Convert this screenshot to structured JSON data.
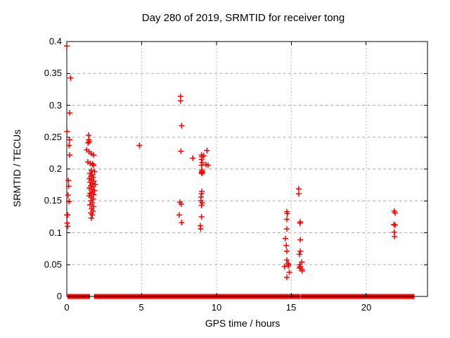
{
  "chart_data": {
    "type": "scatter",
    "title": "Day 280 of 2019, SRMTID for receiver tong",
    "xlabel": "GPS time / hours",
    "ylabel": "SRMTID / TECUs",
    "xlim": [
      0,
      24.1
    ],
    "ylim": [
      0,
      0.4
    ],
    "xticks": [
      [
        0,
        "0"
      ],
      [
        5,
        "5"
      ],
      [
        10,
        "10"
      ],
      [
        15,
        "15"
      ],
      [
        20,
        "20"
      ]
    ],
    "yticks": [
      [
        0,
        "0"
      ],
      [
        0.05,
        "0.05"
      ],
      [
        0.1,
        "0.1"
      ],
      [
        0.15,
        "0.15"
      ],
      [
        0.2,
        "0.2"
      ],
      [
        0.25,
        "0.25"
      ],
      [
        0.3,
        "0.3"
      ],
      [
        0.35,
        "0.35"
      ],
      [
        0.4,
        "0.4"
      ]
    ],
    "grid": true,
    "legend_position": "none",
    "marker": "plus",
    "marker_color": "#ff0000",
    "grid_color": "#b5b5b5",
    "series_name": "SRMTID",
    "points": [
      [
        0.0,
        0.393
      ],
      [
        0.25,
        0.343
      ],
      [
        0.19,
        0.288
      ],
      [
        0.02,
        0.259
      ],
      [
        0.19,
        0.246
      ],
      [
        0.15,
        0.237
      ],
      [
        0.19,
        0.222
      ],
      [
        0.1,
        0.182
      ],
      [
        0.12,
        0.173
      ],
      [
        0.08,
        0.159
      ],
      [
        0.15,
        0.149
      ],
      [
        0.0,
        0.128
      ],
      [
        0.06,
        0.128
      ],
      [
        0.03,
        0.115
      ],
      [
        0.05,
        0.11
      ],
      [
        1.45,
        0.253
      ],
      [
        1.47,
        0.246
      ],
      [
        1.5,
        0.243
      ],
      [
        1.42,
        0.241
      ],
      [
        1.33,
        0.23
      ],
      [
        1.49,
        0.227
      ],
      [
        1.64,
        0.224
      ],
      [
        1.8,
        0.222
      ],
      [
        1.41,
        0.211
      ],
      [
        1.56,
        0.209
      ],
      [
        1.73,
        0.208
      ],
      [
        1.78,
        0.206
      ],
      [
        1.64,
        0.198
      ],
      [
        1.85,
        0.196
      ],
      [
        1.55,
        0.193
      ],
      [
        1.7,
        0.191
      ],
      [
        1.6,
        0.189
      ],
      [
        1.76,
        0.187
      ],
      [
        1.5,
        0.185
      ],
      [
        1.65,
        0.183
      ],
      [
        1.81,
        0.181
      ],
      [
        1.55,
        0.179
      ],
      [
        1.7,
        0.177
      ],
      [
        1.9,
        0.176
      ],
      [
        1.6,
        0.174
      ],
      [
        1.76,
        0.172
      ],
      [
        1.5,
        0.17
      ],
      [
        1.66,
        0.168
      ],
      [
        1.85,
        0.166
      ],
      [
        1.7,
        0.164
      ],
      [
        1.56,
        0.162
      ],
      [
        1.8,
        0.16
      ],
      [
        1.5,
        0.158
      ],
      [
        1.65,
        0.156
      ],
      [
        1.76,
        0.153
      ],
      [
        1.6,
        0.15
      ],
      [
        1.7,
        0.147
      ],
      [
        1.55,
        0.144
      ],
      [
        1.8,
        0.141
      ],
      [
        1.66,
        0.138
      ],
      [
        1.75,
        0.134
      ],
      [
        1.6,
        0.131
      ],
      [
        1.7,
        0.128
      ],
      [
        1.64,
        0.123
      ],
      [
        4.85,
        0.237
      ],
      [
        7.59,
        0.314
      ],
      [
        7.6,
        0.307
      ],
      [
        7.67,
        0.268
      ],
      [
        7.62,
        0.228
      ],
      [
        7.56,
        0.148
      ],
      [
        7.65,
        0.145
      ],
      [
        7.51,
        0.128
      ],
      [
        7.67,
        0.116
      ],
      [
        8.42,
        0.217
      ],
      [
        9.36,
        0.229
      ],
      [
        9.0,
        0.222
      ],
      [
        9.15,
        0.221
      ],
      [
        9.03,
        0.219
      ],
      [
        9.0,
        0.215
      ],
      [
        9.05,
        0.21
      ],
      [
        9.3,
        0.207
      ],
      [
        9.44,
        0.206
      ],
      [
        9.0,
        0.206
      ],
      [
        9.03,
        0.198
      ],
      [
        9.06,
        0.196
      ],
      [
        9.0,
        0.195
      ],
      [
        9.05,
        0.194
      ],
      [
        9.02,
        0.193
      ],
      [
        9.02,
        0.165
      ],
      [
        9.0,
        0.161
      ],
      [
        8.97,
        0.156
      ],
      [
        8.95,
        0.15
      ],
      [
        9.05,
        0.147
      ],
      [
        9.0,
        0.143
      ],
      [
        9.0,
        0.125
      ],
      [
        8.92,
        0.111
      ],
      [
        8.95,
        0.106
      ],
      [
        14.7,
        0.133
      ],
      [
        14.73,
        0.13
      ],
      [
        14.7,
        0.121
      ],
      [
        14.7,
        0.106
      ],
      [
        14.6,
        0.091
      ],
      [
        14.66,
        0.08
      ],
      [
        14.7,
        0.071
      ],
      [
        14.7,
        0.057
      ],
      [
        14.78,
        0.052
      ],
      [
        14.82,
        0.05
      ],
      [
        14.8,
        0.048
      ],
      [
        14.55,
        0.047
      ],
      [
        14.87,
        0.038
      ],
      [
        14.7,
        0.03
      ],
      [
        15.5,
        0.169
      ],
      [
        15.5,
        0.161
      ],
      [
        15.6,
        0.117
      ],
      [
        15.58,
        0.115
      ],
      [
        15.6,
        0.089
      ],
      [
        15.6,
        0.071
      ],
      [
        15.54,
        0.066
      ],
      [
        15.7,
        0.054
      ],
      [
        15.57,
        0.05
      ],
      [
        15.6,
        0.047
      ],
      [
        15.55,
        0.045
      ],
      [
        15.7,
        0.043
      ],
      [
        15.72,
        0.04
      ],
      [
        21.88,
        0.134
      ],
      [
        21.93,
        0.131
      ],
      [
        21.85,
        0.113
      ],
      [
        21.93,
        0.112
      ],
      [
        21.88,
        0.101
      ],
      [
        21.9,
        0.094
      ]
    ],
    "baseline_value": 0,
    "baseline_segments": [
      [
        0.19,
        1.41
      ],
      [
        1.96,
        3.76
      ],
      [
        3.84,
        4.37
      ],
      [
        4.54,
        7.59
      ],
      [
        7.75,
        9.01
      ],
      [
        9.15,
        14.69
      ],
      [
        14.97,
        15.45
      ],
      [
        15.77,
        20.5
      ],
      [
        20.66,
        20.89
      ],
      [
        20.97,
        21.21
      ],
      [
        21.44,
        21.75
      ],
      [
        21.99,
        23.08
      ]
    ]
  }
}
